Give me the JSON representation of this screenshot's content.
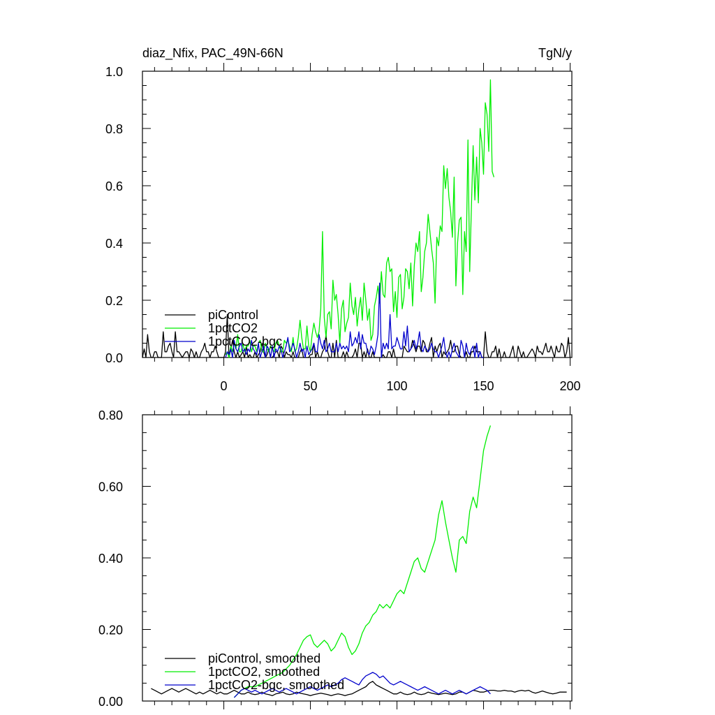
{
  "header": {
    "left_title": "diaz_Nfix, PAC_49N-66N",
    "right_title": "TgN/y"
  },
  "colors": {
    "piControl": "#000000",
    "1pctCO2": "#00ee00",
    "1pctCO2-bgc": "#0000cc"
  },
  "chart_data": [
    {
      "type": "line",
      "panel": "top",
      "xlim": [
        -47,
        201
      ],
      "ylim": [
        0,
        1.0
      ],
      "x_ticks": [
        0,
        50,
        100,
        150,
        200
      ],
      "x_tick_labels": [
        "0",
        "50",
        "100",
        "150",
        "200"
      ],
      "y_ticks": [
        0,
        0.2,
        0.4,
        0.6,
        0.8,
        1.0
      ],
      "y_tick_labels": [
        "0.0",
        "0.2",
        "0.4",
        "0.6",
        "0.8",
        "1.0"
      ],
      "legend_position": "bottom-left",
      "series": [
        {
          "name": "piControl",
          "color": "#000000",
          "x_start": -47,
          "x_step": 1,
          "values": [
            0.0,
            0.03,
            0.0,
            0.08,
            0.02,
            0.0,
            0.0,
            0.02,
            0.02,
            0.0,
            0.0,
            0.0,
            0.09,
            0.02,
            0.02,
            0.04,
            0.05,
            0.02,
            0.0,
            0.09,
            0.02,
            0.02,
            0.01,
            0.0,
            0.01,
            0.02,
            0.02,
            0.0,
            0.03,
            0.02,
            0.0,
            0.02,
            0.0,
            0.0,
            0.02,
            0.03,
            0.05,
            0.02,
            0.02,
            0.0,
            0.02,
            0.02,
            0.04,
            0.02,
            0.0,
            0.0,
            0.0,
            0.0,
            0.02,
            0.15,
            0.0,
            0.03,
            0.06,
            0.02,
            0.0,
            0.02,
            0.0,
            0.01,
            0.02,
            0.0,
            0.04,
            0.0,
            0.01,
            0.0,
            0.0,
            0.02,
            0.0,
            0.01,
            0.02,
            0.05,
            0.02,
            0.0,
            0.01,
            0.03,
            0.0,
            0.0,
            0.01,
            0.02,
            0.02,
            0.0,
            0.04,
            0.03,
            0.0,
            0.02,
            0.01,
            0.01,
            0.0,
            0.02,
            0.0,
            0.0,
            0.0,
            0.02,
            0.03,
            0.0,
            0.0,
            0.0,
            0.0,
            0.01,
            0.01,
            0.05,
            0.0,
            0.02,
            0.0,
            0.0,
            0.02,
            0.03,
            0.08,
            0.02,
            0.0,
            0.0,
            0.05,
            0.0,
            0.06,
            0.0,
            0.0,
            0.0,
            0.02,
            0.0,
            0.02,
            0.0,
            0.0,
            0.0,
            0.01,
            0.03,
            0.0,
            0.05,
            0.05,
            0.0,
            0.02,
            0.0,
            0.03,
            0.0,
            0.0,
            0.02,
            0.0,
            0.0,
            0.0,
            0.0,
            0.0,
            0.01,
            0.0,
            0.0,
            0.02,
            0.02,
            0.0,
            0.03,
            0.0,
            0.0,
            0.0,
            0.0,
            0.0,
            0.04,
            0.03,
            0.02,
            0.02,
            0.03,
            0.06,
            0.04,
            0.02,
            0.04,
            0.04,
            0.02,
            0.06,
            0.05,
            0.02,
            0.02,
            0.05,
            0.07,
            0.0,
            0.04,
            0.02,
            0.04,
            0.05,
            0.0,
            0.02,
            0.01,
            0.02,
            0.03,
            0.06,
            0.02,
            0.02,
            0.04,
            0.04,
            0.01,
            0.0,
            0.0,
            0.0,
            0.02,
            0.0,
            0.0,
            0.02,
            0.02,
            0.04,
            0.02,
            0.02,
            0.02,
            0.0,
            0.0,
            0.09,
            0.02,
            0.0,
            0.0,
            0.02,
            0.02,
            0.04,
            0.0,
            0.03,
            0.0,
            0.0,
            0.02,
            0.0,
            0.0,
            0.0,
            0.02,
            0.04,
            0.0,
            0.0,
            0.04,
            0.02,
            0.0,
            0.02,
            0.0,
            0.0,
            0.01,
            0.02,
            0.03,
            0.02,
            0.0,
            0.04,
            0.02,
            0.02,
            0.01,
            0.03,
            0.05,
            0.02,
            0.02,
            0.04,
            0.02,
            0.0,
            0.04,
            0.02,
            0.02,
            0.05,
            0.04,
            0.0,
            0.02,
            0.07,
            0.0
          ]
        },
        {
          "name": "1pctCO2",
          "color": "#00ee00",
          "x_start": 1,
          "x_step": 1,
          "values": [
            0.01,
            0.02,
            0.0,
            0.04,
            0.02,
            0.05,
            0.03,
            0.08,
            0.02,
            0.02,
            0.05,
            0.02,
            0.04,
            0.04,
            0.06,
            0.02,
            0.04,
            0.04,
            0.02,
            0.05,
            0.06,
            0.02,
            0.02,
            0.05,
            0.03,
            0.02,
            0.04,
            0.03,
            0.02,
            0.05,
            0.06,
            0.04,
            0.02,
            0.02,
            0.06,
            0.05,
            0.06,
            0.04,
            0.02,
            0.07,
            0.02,
            0.03,
            0.07,
            0.13,
            0.07,
            0.03,
            0.03,
            0.11,
            0.04,
            0.02,
            0.08,
            0.12,
            0.09,
            0.07,
            0.09,
            0.17,
            0.44,
            0.14,
            0.07,
            0.15,
            0.16,
            0.1,
            0.27,
            0.2,
            0.22,
            0.15,
            0.05,
            0.17,
            0.2,
            0.09,
            0.12,
            0.14,
            0.26,
            0.18,
            0.15,
            0.21,
            0.11,
            0.17,
            0.21,
            0.13,
            0.26,
            0.2,
            0.13,
            0.17,
            0.06,
            0.08,
            0.18,
            0.21,
            0.25,
            0.19,
            0.3,
            0.22,
            0.21,
            0.33,
            0.35,
            0.3,
            0.31,
            0.16,
            0.23,
            0.14,
            0.28,
            0.29,
            0.17,
            0.21,
            0.31,
            0.3,
            0.24,
            0.33,
            0.18,
            0.32,
            0.4,
            0.37,
            0.44,
            0.23,
            0.28,
            0.37,
            0.4,
            0.5,
            0.44,
            0.38,
            0.33,
            0.19,
            0.42,
            0.39,
            0.46,
            0.44,
            0.67,
            0.59,
            0.66,
            0.56,
            0.51,
            0.42,
            0.63,
            0.25,
            0.4,
            0.48,
            0.49,
            0.22,
            0.44,
            0.37,
            0.76,
            0.3,
            0.53,
            0.74,
            0.55,
            0.7,
            0.54,
            0.8,
            0.75,
            0.64,
            0.89,
            0.85,
            0.72,
            0.97,
            0.65,
            0.63
          ]
        },
        {
          "name": "1pctCO2-bgc",
          "color": "#0000cc",
          "x_start": 1,
          "x_step": 1,
          "values": [
            0.0,
            0.02,
            0.01,
            0.03,
            0.0,
            0.06,
            0.03,
            0.02,
            0.04,
            0.05,
            0.02,
            0.03,
            0.01,
            0.03,
            0.02,
            0.06,
            0.03,
            0.02,
            0.01,
            0.05,
            0.0,
            0.02,
            0.04,
            0.0,
            0.04,
            0.03,
            0.0,
            0.04,
            0.0,
            0.03,
            0.02,
            0.04,
            0.03,
            0.0,
            0.02,
            0.04,
            0.07,
            0.02,
            0.03,
            0.05,
            0.03,
            0.0,
            0.02,
            0.05,
            0.02,
            0.03,
            0.0,
            0.04,
            0.01,
            0.02,
            0.03,
            0.05,
            0.02,
            0.02,
            0.08,
            0.05,
            0.03,
            0.06,
            0.02,
            0.03,
            0.05,
            0.02,
            0.02,
            0.02,
            0.05,
            0.02,
            0.05,
            0.03,
            0.04,
            0.03,
            0.04,
            0.02,
            0.09,
            0.04,
            0.05,
            0.07,
            0.05,
            0.09,
            0.03,
            0.08,
            0.05,
            0.05,
            0.02,
            0.01,
            0.04,
            0.03,
            0.01,
            0.04,
            0.08,
            0.26,
            0.0,
            0.05,
            0.03,
            0.05,
            0.03,
            0.15,
            0.03,
            0.04,
            0.04,
            0.07,
            0.05,
            0.03,
            0.03,
            0.09,
            0.04,
            0.11,
            0.02,
            0.03,
            0.04,
            0.06,
            0.03,
            0.05,
            0.09,
            0.03,
            0.02,
            0.04,
            0.03,
            0.02,
            0.03,
            0.05,
            0.03,
            0.02,
            0.02,
            0.0,
            0.02,
            0.04,
            0.07,
            0.02,
            0.0,
            0.02,
            0.0,
            0.03,
            0.05,
            0.02,
            0.01,
            0.0,
            0.06,
            0.04,
            0.0,
            0.05,
            0.02,
            0.01,
            0.03,
            0.04,
            0.0,
            0.05,
            0.0,
            0.02,
            0.0,
            0.0
          ]
        }
      ]
    },
    {
      "type": "line",
      "panel": "bottom",
      "xlim": [
        -47,
        201
      ],
      "ylim": [
        0,
        0.8
      ],
      "x_ticks": [
        0,
        50,
        100,
        150,
        200
      ],
      "y_ticks": [
        0,
        0.2,
        0.4,
        0.6,
        0.8
      ],
      "y_tick_labels": [
        "0.00",
        "0.20",
        "0.40",
        "0.60",
        "0.80"
      ],
      "legend_position": "bottom-left",
      "series": [
        {
          "name": "piControl, smoothed",
          "color": "#000000",
          "x_start": -42,
          "x_step": 2,
          "values": [
            0.035,
            0.03,
            0.025,
            0.02,
            0.025,
            0.03,
            0.035,
            0.03,
            0.025,
            0.03,
            0.035,
            0.03,
            0.025,
            0.02,
            0.025,
            0.02,
            0.025,
            0.03,
            0.025,
            0.02,
            0.025,
            0.02,
            0.02,
            0.025,
            0.03,
            0.025,
            0.02,
            0.02,
            0.025,
            0.02,
            0.018,
            0.02,
            0.025,
            0.02,
            0.018,
            0.015,
            0.02,
            0.022,
            0.025,
            0.02,
            0.018,
            0.02,
            0.025,
            0.022,
            0.02,
            0.018,
            0.015,
            0.018,
            0.02,
            0.022,
            0.02,
            0.018,
            0.015,
            0.018,
            0.02,
            0.018,
            0.015,
            0.018,
            0.02,
            0.025,
            0.03,
            0.035,
            0.04,
            0.05,
            0.055,
            0.045,
            0.04,
            0.035,
            0.03,
            0.025,
            0.02,
            0.02,
            0.025,
            0.02,
            0.018,
            0.02,
            0.025,
            0.02,
            0.018,
            0.02,
            0.025,
            0.022,
            0.02,
            0.018,
            0.02,
            0.022,
            0.02,
            0.018,
            0.02,
            0.025,
            0.025,
            0.02,
            0.025,
            0.03,
            0.028,
            0.025,
            0.025,
            0.028,
            0.03,
            0.03,
            0.028,
            0.028,
            0.03,
            0.028,
            0.028,
            0.025,
            0.028,
            0.03,
            0.028,
            0.03,
            0.025,
            0.022,
            0.025,
            0.028,
            0.025,
            0.022,
            0.02,
            0.022,
            0.025,
            0.025,
            0.025
          ]
        },
        {
          "name": "1pctCO2, smoothed",
          "color": "#00ee00",
          "x_start": 6,
          "x_step": 2,
          "values": [
            0.01,
            0.02,
            0.03,
            0.035,
            0.04,
            0.04,
            0.04,
            0.045,
            0.05,
            0.055,
            0.06,
            0.065,
            0.07,
            0.075,
            0.08,
            0.09,
            0.1,
            0.115,
            0.13,
            0.15,
            0.17,
            0.18,
            0.185,
            0.16,
            0.15,
            0.16,
            0.17,
            0.16,
            0.14,
            0.15,
            0.17,
            0.19,
            0.18,
            0.15,
            0.13,
            0.14,
            0.16,
            0.19,
            0.21,
            0.22,
            0.24,
            0.25,
            0.27,
            0.26,
            0.27,
            0.26,
            0.28,
            0.3,
            0.31,
            0.3,
            0.33,
            0.36,
            0.39,
            0.4,
            0.37,
            0.36,
            0.39,
            0.42,
            0.45,
            0.52,
            0.56,
            0.5,
            0.45,
            0.4,
            0.36,
            0.45,
            0.46,
            0.44,
            0.53,
            0.57,
            0.54,
            0.62,
            0.7,
            0.74,
            0.77
          ]
        },
        {
          "name": "1pctCO2-bgc, smoothed",
          "color": "#0000cc",
          "x_start": 6,
          "x_step": 2,
          "values": [
            0.01,
            0.02,
            0.03,
            0.035,
            0.03,
            0.025,
            0.03,
            0.025,
            0.02,
            0.025,
            0.03,
            0.035,
            0.03,
            0.025,
            0.03,
            0.035,
            0.03,
            0.025,
            0.02,
            0.025,
            0.03,
            0.035,
            0.04,
            0.035,
            0.03,
            0.035,
            0.04,
            0.045,
            0.04,
            0.045,
            0.05,
            0.06,
            0.065,
            0.06,
            0.055,
            0.05,
            0.045,
            0.06,
            0.07,
            0.075,
            0.08,
            0.075,
            0.065,
            0.07,
            0.06,
            0.05,
            0.045,
            0.05,
            0.055,
            0.05,
            0.045,
            0.04,
            0.035,
            0.03,
            0.035,
            0.04,
            0.035,
            0.03,
            0.025,
            0.02,
            0.025,
            0.03,
            0.025,
            0.02,
            0.025,
            0.03,
            0.025,
            0.02,
            0.025,
            0.03,
            0.035,
            0.04,
            0.035,
            0.03,
            0.02
          ]
        }
      ]
    }
  ]
}
